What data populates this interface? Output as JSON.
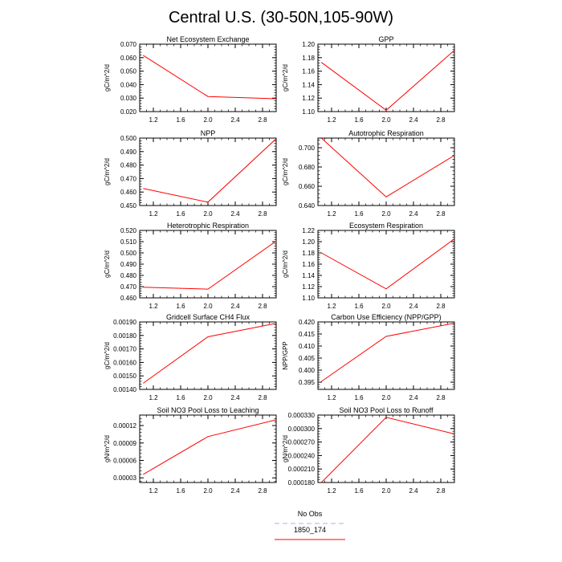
{
  "title": "Central U.S. (30-50N,105-90W)",
  "legend": {
    "entries": [
      {
        "label": "No Obs",
        "color": "#aab0f0",
        "dash": "dashed"
      },
      {
        "label": "1850_174",
        "color": "#ff0000",
        "dash": "solid"
      }
    ]
  },
  "chart_data": [
    {
      "type": "line",
      "title": "Net Ecosystem Exchange",
      "ylabel": "gC/m^2/d",
      "xlim": [
        1.0,
        3.0
      ],
      "ylim": [
        0.02,
        0.07
      ],
      "xticks": [
        "1.2",
        "1.6",
        "2.0",
        "2.4",
        "2.8"
      ],
      "xtick_values": [
        1.2,
        1.6,
        2.0,
        2.4,
        2.8
      ],
      "yticks": [
        "0.020",
        "0.030",
        "0.040",
        "0.050",
        "0.060",
        "0.070"
      ],
      "ytick_values": [
        0.02,
        0.03,
        0.04,
        0.05,
        0.06,
        0.07
      ],
      "x": [
        1.05,
        2.0,
        3.0
      ],
      "series": [
        {
          "values": [
            0.0617,
            0.0312,
            0.0295
          ],
          "color": "#ff0000"
        }
      ]
    },
    {
      "type": "line",
      "title": "GPP",
      "ylabel": "gC/m^2/d",
      "xlim": [
        1.0,
        3.0
      ],
      "ylim": [
        1.1,
        1.2
      ],
      "xticks": [
        "1.2",
        "1.6",
        "2.0",
        "2.4",
        "2.8"
      ],
      "xtick_values": [
        1.2,
        1.6,
        2.0,
        2.4,
        2.8
      ],
      "yticks": [
        "1.10",
        "1.12",
        "1.14",
        "1.16",
        "1.18",
        "1.20"
      ],
      "ytick_values": [
        1.1,
        1.12,
        1.14,
        1.16,
        1.18,
        1.2
      ],
      "x": [
        1.05,
        2.0,
        3.0
      ],
      "series": [
        {
          "values": [
            1.173,
            1.102,
            1.191
          ],
          "color": "#ff0000"
        }
      ]
    },
    {
      "type": "line",
      "title": "NPP",
      "ylabel": "gC/m^2/d",
      "xlim": [
        1.0,
        3.0
      ],
      "ylim": [
        0.45,
        0.5
      ],
      "xticks": [
        "1.2",
        "1.6",
        "2.0",
        "2.4",
        "2.8"
      ],
      "xtick_values": [
        1.2,
        1.6,
        2.0,
        2.4,
        2.8
      ],
      "yticks": [
        "0.450",
        "0.460",
        "0.470",
        "0.480",
        "0.490",
        "0.500"
      ],
      "ytick_values": [
        0.45,
        0.46,
        0.47,
        0.48,
        0.49,
        0.5
      ],
      "x": [
        1.05,
        2.0,
        3.0
      ],
      "series": [
        {
          "values": [
            0.4627,
            0.4525,
            0.4995
          ],
          "color": "#ff0000"
        }
      ]
    },
    {
      "type": "line",
      "title": "Autotrophic Respiration",
      "ylabel": "gC/m^2/d",
      "xlim": [
        1.0,
        3.0
      ],
      "ylim": [
        0.64,
        0.71
      ],
      "xticks": [
        "1.2",
        "1.6",
        "2.0",
        "2.4",
        "2.8"
      ],
      "xtick_values": [
        1.2,
        1.6,
        2.0,
        2.4,
        2.8
      ],
      "yticks": [
        "0.640",
        "0.660",
        "0.680",
        "0.700"
      ],
      "ytick_values": [
        0.64,
        0.66,
        0.68,
        0.7
      ],
      "x": [
        1.05,
        2.0,
        3.0
      ],
      "series": [
        {
          "values": [
            0.71,
            0.649,
            0.692
          ],
          "color": "#ff0000"
        }
      ]
    },
    {
      "type": "line",
      "title": "Heterotrophic Respiration",
      "ylabel": "gC/m^2/d",
      "xlim": [
        1.0,
        3.0
      ],
      "ylim": [
        0.46,
        0.52
      ],
      "xticks": [
        "1.2",
        "1.6",
        "2.0",
        "2.4",
        "2.8"
      ],
      "xtick_values": [
        1.2,
        1.6,
        2.0,
        2.4,
        2.8
      ],
      "yticks": [
        "0.460",
        "0.470",
        "0.480",
        "0.490",
        "0.500",
        "0.510",
        "0.520"
      ],
      "ytick_values": [
        0.46,
        0.47,
        0.48,
        0.49,
        0.5,
        0.51,
        0.52
      ],
      "x": [
        1.05,
        2.0,
        3.0
      ],
      "series": [
        {
          "values": [
            0.4695,
            0.4678,
            0.5105
          ],
          "color": "#ff0000"
        }
      ]
    },
    {
      "type": "line",
      "title": "Ecosystem Respiration",
      "ylabel": "gC/m^2/d",
      "xlim": [
        1.0,
        3.0
      ],
      "ylim": [
        1.1,
        1.22
      ],
      "xticks": [
        "1.2",
        "1.6",
        "2.0",
        "2.4",
        "2.8"
      ],
      "xtick_values": [
        1.2,
        1.6,
        2.0,
        2.4,
        2.8
      ],
      "yticks": [
        "1.10",
        "1.12",
        "1.14",
        "1.16",
        "1.18",
        "1.20",
        "1.22"
      ],
      "ytick_values": [
        1.1,
        1.12,
        1.14,
        1.16,
        1.18,
        1.2,
        1.22
      ],
      "x": [
        1.05,
        2.0,
        3.0
      ],
      "series": [
        {
          "values": [
            1.18,
            1.116,
            1.205
          ],
          "color": "#ff0000"
        }
      ]
    },
    {
      "type": "line",
      "title": "Gridcell Surface CH4 Flux",
      "ylabel": "gC/m^2/d",
      "xlim": [
        1.0,
        3.0
      ],
      "ylim": [
        0.0014,
        0.0019
      ],
      "xticks": [
        "1.2",
        "1.6",
        "2.0",
        "2.4",
        "2.8"
      ],
      "xtick_values": [
        1.2,
        1.6,
        2.0,
        2.4,
        2.8
      ],
      "yticks": [
        "0.00140",
        "0.00150",
        "0.00160",
        "0.00170",
        "0.00180",
        "0.00190"
      ],
      "ytick_values": [
        0.0014,
        0.0015,
        0.0016,
        0.0017,
        0.0018,
        0.0019
      ],
      "x": [
        1.05,
        2.0,
        3.0
      ],
      "series": [
        {
          "values": [
            0.001445,
            0.00179,
            0.00189
          ],
          "color": "#ff0000"
        }
      ]
    },
    {
      "type": "line",
      "title": "Carbon Use Efficiency (NPP/GPP)",
      "ylabel": "NPP/GPP",
      "xlim": [
        1.0,
        3.0
      ],
      "ylim": [
        0.392,
        0.42
      ],
      "xticks": [
        "1.2",
        "1.6",
        "2.0",
        "2.4",
        "2.8"
      ],
      "xtick_values": [
        1.2,
        1.6,
        2.0,
        2.4,
        2.8
      ],
      "yticks": [
        "0.395",
        "0.400",
        "0.405",
        "0.410",
        "0.415",
        "0.420"
      ],
      "ytick_values": [
        0.395,
        0.4,
        0.405,
        0.41,
        0.415,
        0.42
      ],
      "x": [
        1.05,
        2.0,
        3.0
      ],
      "series": [
        {
          "values": [
            0.3953,
            0.414,
            0.4195
          ],
          "color": "#ff0000"
        }
      ]
    },
    {
      "type": "line",
      "title": "Soil NO3 Pool Loss to Leaching",
      "ylabel": "gN/m^2/d",
      "xlim": [
        1.0,
        3.0
      ],
      "ylim": [
        2.2e-05,
        0.000138
      ],
      "xticks": [
        "1.2",
        "1.6",
        "2.0",
        "2.4",
        "2.8"
      ],
      "xtick_values": [
        1.2,
        1.6,
        2.0,
        2.4,
        2.8
      ],
      "yticks": [
        "0.00003",
        "0.00006",
        "0.00009",
        "0.00012"
      ],
      "ytick_values": [
        3e-05,
        6e-05,
        9e-05,
        0.00012
      ],
      "x": [
        1.05,
        2.0,
        3.0
      ],
      "series": [
        {
          "values": [
            3.6e-05,
            0.000101,
            0.00013
          ],
          "color": "#ff0000"
        }
      ]
    },
    {
      "type": "line",
      "title": "Soil NO3 Pool Loss to Runoff",
      "ylabel": "gN/m^2/d",
      "xlim": [
        1.0,
        3.0
      ],
      "ylim": [
        0.00018,
        0.00033
      ],
      "xticks": [
        "1.2",
        "1.6",
        "2.0",
        "2.4",
        "2.8"
      ],
      "xtick_values": [
        1.2,
        1.6,
        2.0,
        2.4,
        2.8
      ],
      "yticks": [
        "0.000180",
        "0.000210",
        "0.000240",
        "0.000270",
        "0.000300",
        "0.000330"
      ],
      "ytick_values": [
        0.00018,
        0.00021,
        0.00024,
        0.00027,
        0.0003,
        0.00033
      ],
      "x": [
        1.05,
        2.0,
        3.0
      ],
      "series": [
        {
          "values": [
            0.00018,
            0.000325,
            0.000288
          ],
          "color": "#ff0000"
        }
      ]
    }
  ]
}
